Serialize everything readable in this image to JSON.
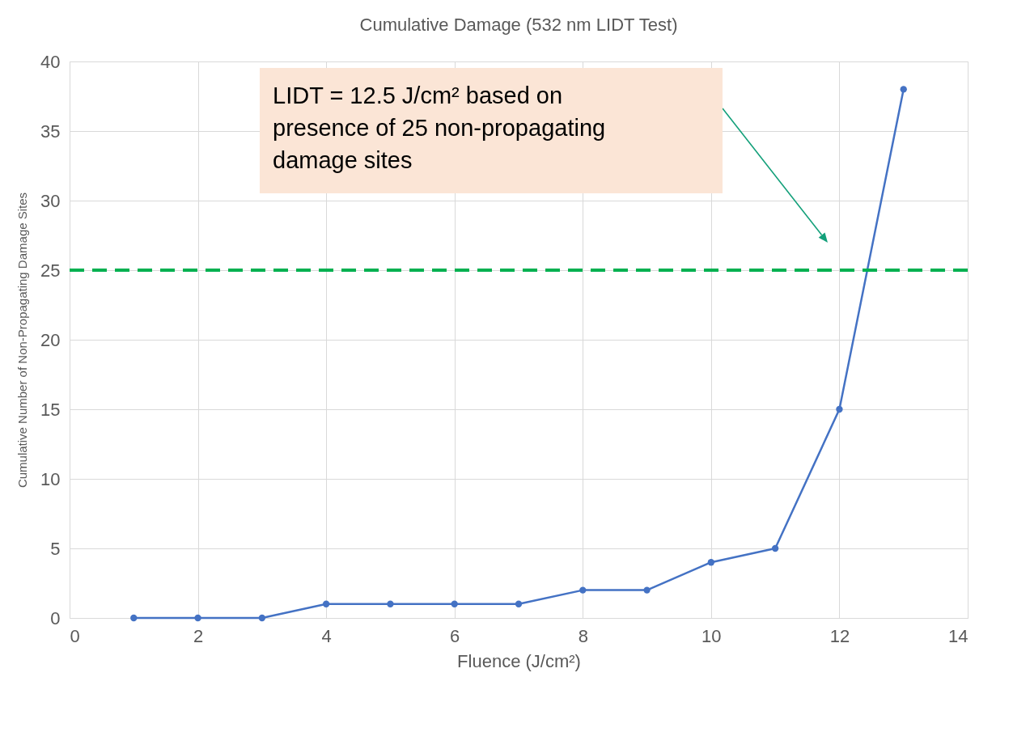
{
  "chart_data": {
    "type": "line",
    "title": "Cumulative Damage (532 nm LIDT Test)",
    "xlabel": "Fluence (J/cm²)",
    "ylabel": "Cumulative Number of Non-Propagating Damage Sites",
    "x": [
      1,
      2,
      3,
      4,
      5,
      6,
      7,
      8,
      9,
      10,
      11,
      12,
      13
    ],
    "series": [
      {
        "color": "#4472c4",
        "values": [
          0,
          0,
          0,
          1,
          1,
          1,
          1,
          2,
          2,
          4,
          5,
          15,
          38
        ]
      }
    ],
    "xlim": [
      0,
      14
    ],
    "xticks": [
      0,
      2,
      4,
      6,
      8,
      10,
      12,
      14
    ],
    "ylim": [
      0,
      40
    ],
    "yticks": [
      0,
      5,
      10,
      15,
      20,
      25,
      30,
      35,
      40
    ],
    "grid": true,
    "marker": "circle",
    "line_style": "solid",
    "ref_lines": [
      {
        "axis": "y",
        "value": 25,
        "color": "#00b050",
        "line_style": "dashed"
      }
    ],
    "annotations": [
      "LIDT = 12.5 J/cm² based on presence of 25 non-propagating damage sites"
    ]
  }
}
